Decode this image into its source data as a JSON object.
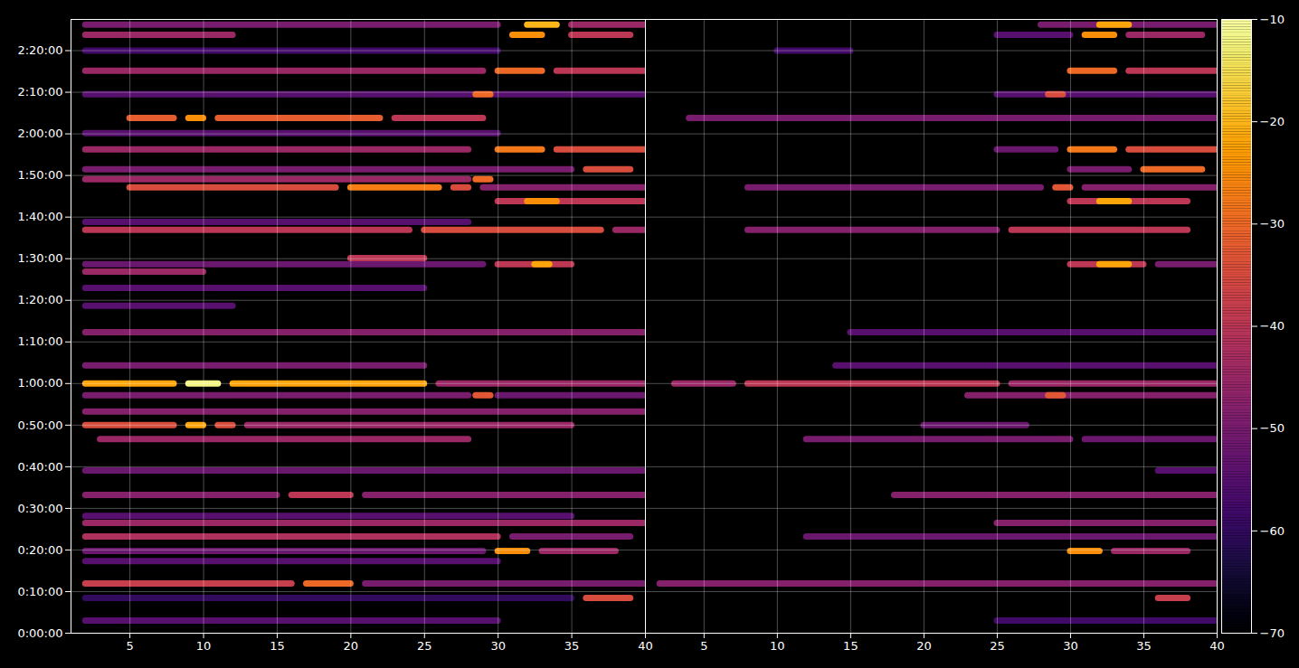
{
  "chart_data": {
    "type": "heatmap",
    "grid": true,
    "ylim": [
      0,
      8850
    ],
    "yticks": [
      {
        "value": 0,
        "label": "0:00:00"
      },
      {
        "value": 600,
        "label": "0:10:00"
      },
      {
        "value": 1200,
        "label": "0:20:00"
      },
      {
        "value": 1800,
        "label": "0:30:00"
      },
      {
        "value": 2400,
        "label": "0:40:00"
      },
      {
        "value": 3000,
        "label": "0:50:00"
      },
      {
        "value": 3600,
        "label": "1:00:00"
      },
      {
        "value": 4200,
        "label": "1:10:00"
      },
      {
        "value": 4800,
        "label": "1:20:00"
      },
      {
        "value": 5400,
        "label": "1:30:00"
      },
      {
        "value": 6000,
        "label": "1:40:00"
      },
      {
        "value": 6600,
        "label": "1:50:00"
      },
      {
        "value": 7200,
        "label": "2:00:00"
      },
      {
        "value": 7800,
        "label": "2:10:00"
      },
      {
        "value": 8400,
        "label": "2:20:00"
      }
    ],
    "colorbar": {
      "color": "inferno",
      "range": [
        -70,
        -10
      ],
      "ticks": [
        {
          "value": -70,
          "label": "−70"
        },
        {
          "value": -60,
          "label": "−60"
        },
        {
          "value": -50,
          "label": "−50"
        },
        {
          "value": -40,
          "label": "−40"
        },
        {
          "value": -30,
          "label": "−30"
        },
        {
          "value": -20,
          "label": "−20"
        },
        {
          "value": -10,
          "label": "−10"
        }
      ]
    },
    "panels": [
      {
        "tick_labels": true,
        "xlim": [
          1,
          40
        ],
        "xticks": [
          5,
          10,
          15,
          20,
          25,
          30,
          35,
          40
        ],
        "cells": [
          [
            182,
            2,
            30,
            -55
          ],
          [
            508,
            2,
            35,
            -60
          ],
          [
            508,
            36,
            39,
            -35
          ],
          [
            717,
            2,
            16,
            -38
          ],
          [
            717,
            17,
            20,
            -30
          ],
          [
            717,
            21,
            40,
            -50
          ],
          [
            1040,
            2,
            30,
            -55
          ],
          [
            1185,
            2,
            29,
            -52
          ],
          [
            1185,
            30,
            32,
            -25
          ],
          [
            1185,
            33,
            38,
            -45
          ],
          [
            1395,
            2,
            30,
            -42
          ],
          [
            1395,
            31,
            39,
            -50
          ],
          [
            1590,
            2,
            40,
            -45
          ],
          [
            1690,
            2,
            35,
            -55
          ],
          [
            1995,
            2,
            15,
            -48
          ],
          [
            1995,
            16,
            20,
            -40
          ],
          [
            1995,
            21,
            40,
            -48
          ],
          [
            2345,
            2,
            40,
            -52
          ],
          [
            2800,
            3,
            28,
            -45
          ],
          [
            3000,
            2,
            8,
            -35
          ],
          [
            3000,
            9,
            10,
            -22
          ],
          [
            3000,
            11,
            12,
            -35
          ],
          [
            3000,
            13,
            35,
            -45
          ],
          [
            3195,
            2,
            40,
            -48
          ],
          [
            3430,
            2,
            28,
            -50
          ],
          [
            3430,
            28.5,
            29.5,
            -33
          ],
          [
            3430,
            30,
            40,
            -52
          ],
          [
            3600,
            2,
            8,
            -22
          ],
          [
            3600,
            9,
            11,
            -12
          ],
          [
            3600,
            12,
            25,
            -22
          ],
          [
            3600,
            26,
            40,
            -45
          ],
          [
            3860,
            2,
            25,
            -50
          ],
          [
            4340,
            2,
            40,
            -48
          ],
          [
            4720,
            2,
            12,
            -55
          ],
          [
            4980,
            2,
            25,
            -55
          ],
          [
            5215,
            2,
            10,
            -45
          ],
          [
            5320,
            2,
            29,
            -52
          ],
          [
            5320,
            30,
            35,
            -40
          ],
          [
            5320,
            32.5,
            33.5,
            -22
          ],
          [
            5410,
            20,
            25,
            -40
          ],
          [
            5815,
            2,
            24,
            -40
          ],
          [
            5815,
            25,
            37,
            -35
          ],
          [
            5815,
            38,
            40,
            -45
          ],
          [
            5930,
            2,
            28,
            -55
          ],
          [
            6230,
            30,
            40,
            -40
          ],
          [
            6230,
            32,
            34,
            -25
          ],
          [
            6430,
            5,
            19,
            -35
          ],
          [
            6430,
            20,
            26,
            -27
          ],
          [
            6430,
            27,
            28,
            -35
          ],
          [
            6430,
            29,
            40,
            -48
          ],
          [
            6545,
            2,
            28,
            -45
          ],
          [
            6545,
            28.5,
            29.5,
            -30
          ],
          [
            6690,
            2,
            35,
            -50
          ],
          [
            6690,
            36,
            39,
            -35
          ],
          [
            6975,
            2,
            28,
            -45
          ],
          [
            6975,
            30,
            33,
            -28
          ],
          [
            6975,
            34,
            40,
            -35
          ],
          [
            7210,
            2,
            30,
            -55
          ],
          [
            7430,
            5,
            8,
            -32
          ],
          [
            7430,
            9,
            10,
            -25
          ],
          [
            7430,
            11,
            22,
            -32
          ],
          [
            7430,
            23,
            29,
            -40
          ],
          [
            7770,
            2,
            40,
            -55
          ],
          [
            7770,
            28.5,
            29.5,
            -30
          ],
          [
            8110,
            2,
            29,
            -45
          ],
          [
            8110,
            30,
            33,
            -30
          ],
          [
            8110,
            34,
            40,
            -40
          ],
          [
            8400,
            2,
            30,
            -58
          ],
          [
            8630,
            2,
            12,
            -45
          ],
          [
            8630,
            31,
            33,
            -25
          ],
          [
            8630,
            35,
            39,
            -40
          ],
          [
            8775,
            2,
            30,
            -50
          ],
          [
            8775,
            32,
            34,
            -20
          ],
          [
            8775,
            35,
            40,
            -45
          ]
        ]
      },
      {
        "tick_labels": "x",
        "xlim": [
          1,
          40
        ],
        "xticks": [
          5,
          10,
          15,
          20,
          25,
          30,
          35,
          40
        ],
        "cells": [
          [
            182,
            25,
            40,
            -58
          ],
          [
            508,
            36,
            38,
            -38
          ],
          [
            717,
            2,
            40,
            -48
          ],
          [
            1185,
            30,
            32,
            -25
          ],
          [
            1185,
            33,
            38,
            -45
          ],
          [
            1395,
            12,
            40,
            -52
          ],
          [
            1590,
            25,
            40,
            -48
          ],
          [
            1995,
            18,
            40,
            -48
          ],
          [
            2345,
            36,
            40,
            -55
          ],
          [
            2800,
            12,
            30,
            -50
          ],
          [
            2800,
            31,
            40,
            -52
          ],
          [
            3000,
            20,
            27,
            -52
          ],
          [
            3430,
            23,
            40,
            -48
          ],
          [
            3430,
            28.5,
            29.5,
            -33
          ],
          [
            3600,
            3,
            7,
            -45
          ],
          [
            3600,
            8,
            25,
            -40
          ],
          [
            3600,
            26,
            40,
            -45
          ],
          [
            3860,
            14,
            40,
            -55
          ],
          [
            4340,
            15,
            40,
            -55
          ],
          [
            5320,
            30,
            35,
            -40
          ],
          [
            5320,
            32,
            34,
            -22
          ],
          [
            5320,
            36,
            40,
            -50
          ],
          [
            5815,
            8,
            25,
            -48
          ],
          [
            5815,
            26,
            38,
            -40
          ],
          [
            6230,
            30,
            38,
            -40
          ],
          [
            6230,
            32,
            34,
            -22
          ],
          [
            6430,
            8,
            28,
            -50
          ],
          [
            6430,
            29,
            30,
            -33
          ],
          [
            6430,
            31,
            40,
            -48
          ],
          [
            6690,
            30,
            34,
            -50
          ],
          [
            6690,
            35,
            39,
            -30
          ],
          [
            6975,
            25,
            29,
            -52
          ],
          [
            6975,
            30,
            33,
            -28
          ],
          [
            6975,
            34,
            40,
            -35
          ],
          [
            7430,
            4,
            40,
            -50
          ],
          [
            7770,
            25,
            40,
            -55
          ],
          [
            7770,
            28.5,
            29.5,
            -35
          ],
          [
            8110,
            30,
            33,
            -30
          ],
          [
            8110,
            34,
            40,
            -40
          ],
          [
            8400,
            10,
            15,
            -58
          ],
          [
            8630,
            25,
            30,
            -55
          ],
          [
            8630,
            31,
            33,
            -25
          ],
          [
            8630,
            34,
            39,
            -45
          ],
          [
            8775,
            28,
            40,
            -50
          ],
          [
            8775,
            32,
            34,
            -22
          ]
        ]
      }
    ]
  }
}
